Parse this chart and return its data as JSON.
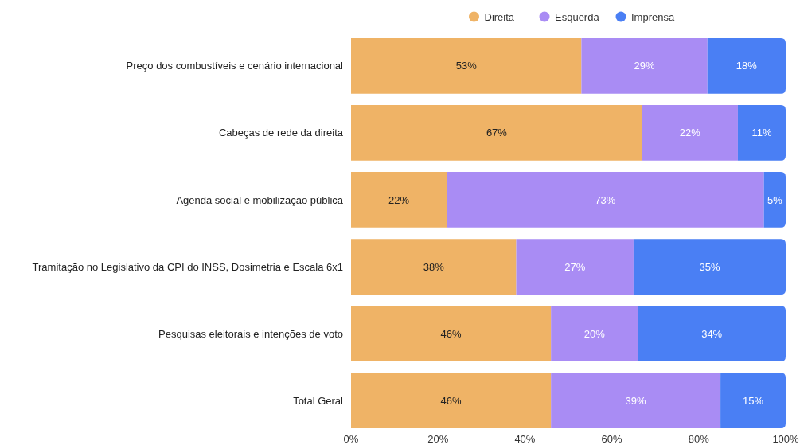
{
  "chart_data": {
    "type": "bar",
    "orientation": "horizontal",
    "stacked": true,
    "legend": "top right",
    "grid": false,
    "categories": [
      "Preço dos combustíveis e cenário internacional",
      "Cabeças de rede da direita",
      "Agenda social e mobilização pública",
      "Tramitação no Legislativo da CPI do INSS, Dosimetria e Escala 6x1",
      "Pesquisas eleitorais e intenções de voto",
      "Total Geral"
    ],
    "series": [
      {
        "name": "Direita",
        "color": "#efb366",
        "values": [
          53,
          67,
          22,
          38,
          46,
          46
        ],
        "value_labels": [
          "53%",
          "67%",
          "22%",
          "38%",
          "46%",
          "46%"
        ]
      },
      {
        "name": "Esquerda",
        "color": "#a98cf4",
        "values": [
          29,
          22,
          73,
          27,
          20,
          39
        ],
        "value_labels": [
          "29%",
          "22%",
          "73%",
          "27%",
          "20%",
          "39%"
        ]
      },
      {
        "name": "Imprensa",
        "color": "#4a7ff4",
        "values": [
          18,
          11,
          5,
          35,
          34,
          15
        ],
        "value_labels": [
          "18%",
          "11%",
          "5%",
          "35%",
          "34%",
          "15%"
        ]
      }
    ],
    "xlim": [
      0,
      100
    ],
    "xticks": [
      {
        "value": 0,
        "label": "0%"
      },
      {
        "value": 20,
        "label": "20%"
      },
      {
        "value": 40,
        "label": "40%"
      },
      {
        "value": 60,
        "label": "60%"
      },
      {
        "value": 80,
        "label": "80%"
      },
      {
        "value": 100,
        "label": "100%"
      }
    ]
  }
}
